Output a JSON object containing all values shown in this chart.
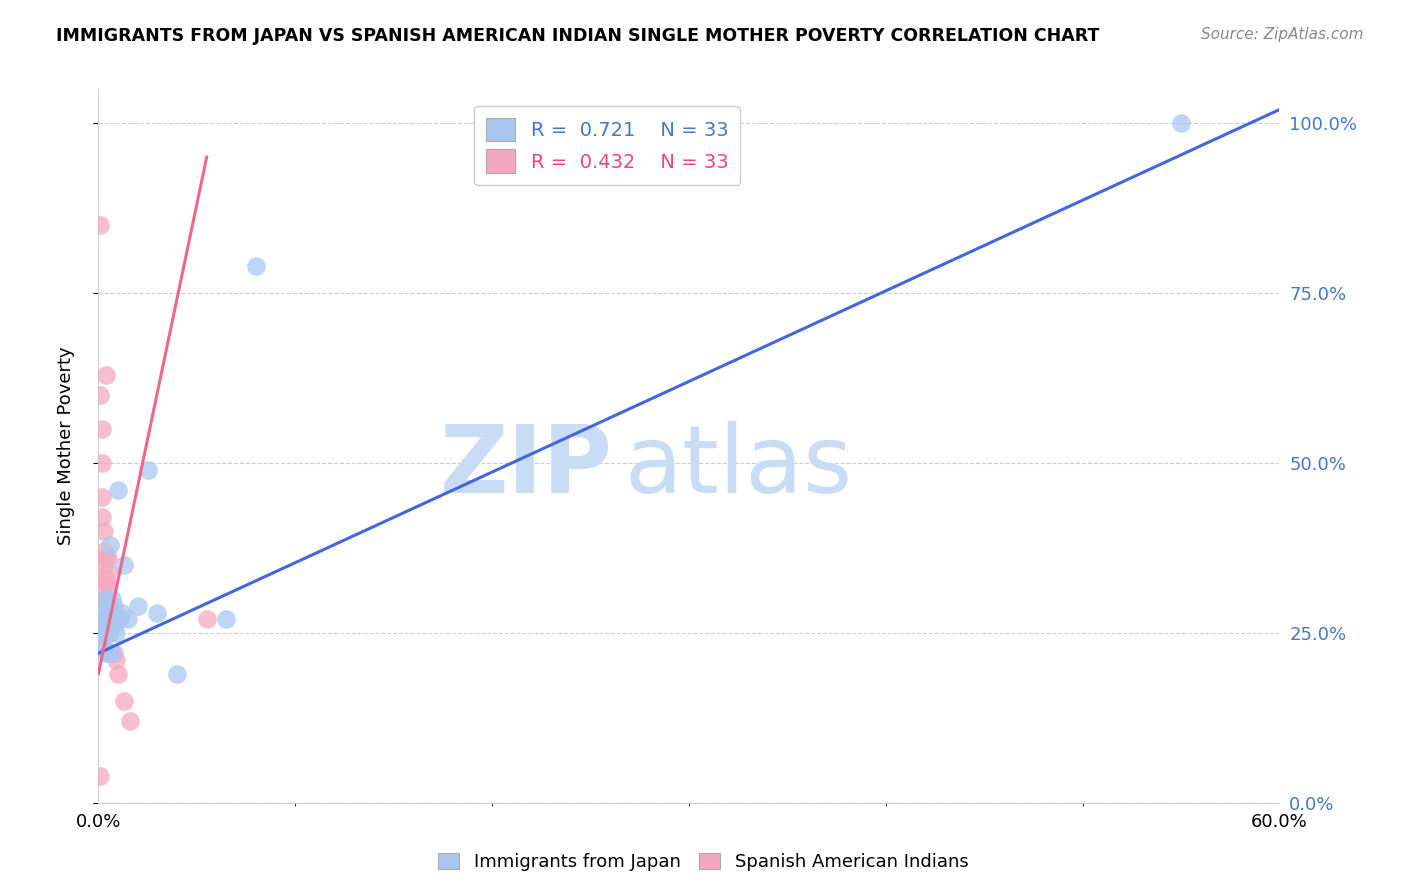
{
  "title": "IMMIGRANTS FROM JAPAN VS SPANISH AMERICAN INDIAN SINGLE MOTHER POVERTY CORRELATION CHART",
  "source": "Source: ZipAtlas.com",
  "ylabel": "Single Mother Poverty",
  "xlim": [
    0.0,
    0.6
  ],
  "ylim": [
    0.0,
    1.05
  ],
  "R_blue": 0.721,
  "N_blue": 33,
  "R_pink": 0.432,
  "N_pink": 33,
  "color_blue": "#A8C8F0",
  "color_pink": "#F4A8C0",
  "line_blue": "#4466DD",
  "line_pink": "#EE6688",
  "watermark_zip": "ZIP",
  "watermark_atlas": "atlas",
  "watermark_color": "#C8DCF5",
  "legend_label_blue": "Immigrants from Japan",
  "legend_label_pink": "Spanish American Indians",
  "blue_scatter_x": [
    0.001,
    0.002,
    0.002,
    0.003,
    0.003,
    0.003,
    0.004,
    0.004,
    0.004,
    0.005,
    0.005,
    0.005,
    0.005,
    0.006,
    0.006,
    0.006,
    0.007,
    0.007,
    0.008,
    0.008,
    0.009,
    0.01,
    0.01,
    0.012,
    0.013,
    0.015,
    0.02,
    0.025,
    0.03,
    0.04,
    0.065,
    0.08,
    0.55
  ],
  "blue_scatter_y": [
    0.26,
    0.25,
    0.24,
    0.23,
    0.27,
    0.3,
    0.28,
    0.27,
    0.22,
    0.29,
    0.26,
    0.25,
    0.22,
    0.38,
    0.28,
    0.25,
    0.3,
    0.22,
    0.29,
    0.26,
    0.25,
    0.46,
    0.27,
    0.28,
    0.35,
    0.27,
    0.29,
    0.49,
    0.28,
    0.19,
    0.27,
    0.79,
    1.0
  ],
  "pink_scatter_x": [
    0.001,
    0.001,
    0.001,
    0.002,
    0.002,
    0.002,
    0.002,
    0.003,
    0.003,
    0.003,
    0.003,
    0.003,
    0.004,
    0.004,
    0.004,
    0.004,
    0.004,
    0.005,
    0.005,
    0.005,
    0.005,
    0.005,
    0.006,
    0.006,
    0.007,
    0.007,
    0.008,
    0.009,
    0.01,
    0.011,
    0.013,
    0.016,
    0.055
  ],
  "pink_scatter_y": [
    0.04,
    0.85,
    0.6,
    0.55,
    0.5,
    0.45,
    0.42,
    0.4,
    0.37,
    0.35,
    0.32,
    0.3,
    0.36,
    0.33,
    0.3,
    0.27,
    0.63,
    0.36,
    0.34,
    0.32,
    0.29,
    0.27,
    0.29,
    0.27,
    0.26,
    0.22,
    0.22,
    0.21,
    0.19,
    0.27,
    0.15,
    0.12,
    0.27
  ],
  "blue_line_x0": 0.0,
  "blue_line_y0": 0.22,
  "blue_line_x1": 0.6,
  "blue_line_y1": 1.02,
  "pink_line_x0": 0.0,
  "pink_line_y0": 0.19,
  "pink_line_x1": 0.055,
  "pink_line_y1": 0.95
}
